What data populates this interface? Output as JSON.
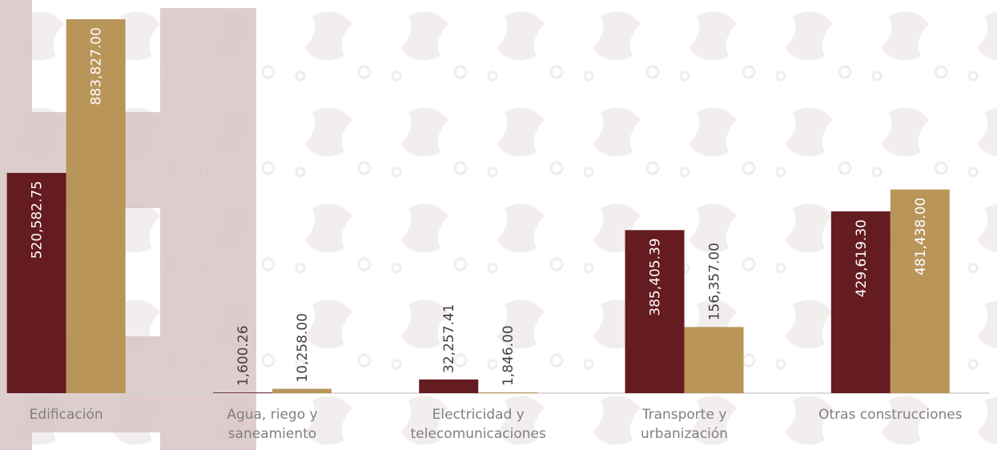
{
  "chart_data": {
    "type": "bar",
    "categories": [
      "Edificación",
      "Agua, riego y\nsaneamiento",
      "Electricidad y\ntelecomunicaciones",
      "Transporte y\nurbanización",
      "Otras construcciones"
    ],
    "series": [
      {
        "color": "#641c20",
        "values": [
          520582.75,
          1600.26,
          32257.41,
          385405.39,
          429619.3
        ],
        "value_labels": [
          "520,582.75",
          "1,600.26",
          "32,257.41",
          "385,405.39",
          "429,619.30"
        ]
      },
      {
        "color": "#b9955a",
        "values": [
          883827.0,
          10258.0,
          1846.0,
          156357.0,
          481438.0
        ],
        "value_labels": [
          "883,827.00",
          "10,258.00",
          "1,846.00",
          "156,357.00",
          "481,438.00"
        ]
      }
    ],
    "ylim": [
      0,
      900000
    ]
  }
}
